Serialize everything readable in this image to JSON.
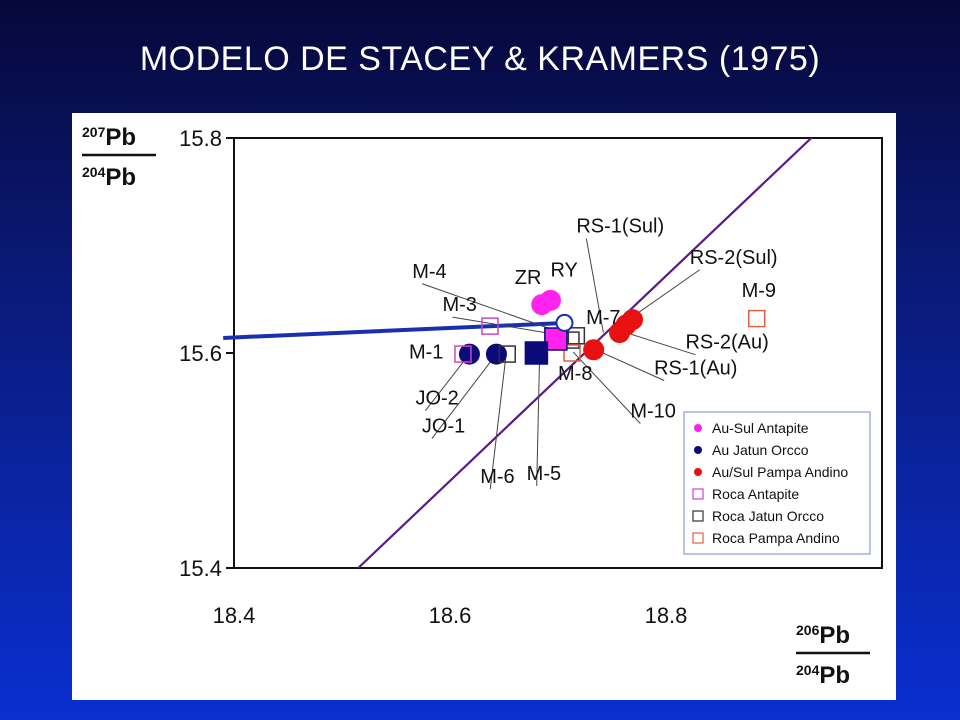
{
  "slide": {
    "title": "MODELO DE STACEY & KRAMERS (1975)"
  },
  "chart_data": {
    "type": "scatter",
    "title": "",
    "ylabel": {
      "num_sup": "207",
      "num": "Pb",
      "den_sup": "204",
      "den": "Pb"
    },
    "xlabel": {
      "num_sup": "206",
      "num": "Pb",
      "den_sup": "204",
      "den": "Pb"
    },
    "xlim": [
      18.4,
      19.0
    ],
    "ylim": [
      15.4,
      15.8
    ],
    "xticks": [
      "18.4",
      "18.6",
      "18.8"
    ],
    "yticks": [
      "15.4",
      "15.6",
      "15.8"
    ],
    "xtick_values": [
      18.4,
      18.6,
      18.8
    ],
    "ytick_values": [
      15.4,
      15.6,
      15.8
    ],
    "grid": false,
    "legend_position": "bottom-right",
    "colors": {
      "magenta": "#ff22ee",
      "navy": "#0a0a78",
      "red": "#e81010",
      "purple_line": "#5a1a8a",
      "blue_line": "#1a2fb0"
    },
    "reference_lines": [
      {
        "name": "purple-diagonal",
        "color": "#5a1a8a",
        "points": [
          [
            18.515,
            15.4
          ],
          [
            18.945,
            15.81
          ]
        ]
      },
      {
        "name": "blue-growth-curve",
        "color": "#1a2fb0",
        "points": [
          [
            18.39,
            15.614
          ],
          [
            18.708,
            15.628
          ]
        ]
      }
    ],
    "series": [
      {
        "name": "Au-Sul Antapite",
        "marker": "circle",
        "fill": "#ff22ee",
        "points": [
          [
            18.685,
            15.645
          ],
          [
            18.693,
            15.649
          ]
        ]
      },
      {
        "name": "Au Jatun Orcco",
        "marker": "circle",
        "fill": "#0a0a78",
        "points": [
          [
            18.618,
            15.599
          ],
          [
            18.643,
            15.599
          ]
        ]
      },
      {
        "name": "Au/Sul Pampa Andino",
        "marker": "circle",
        "fill": "#e81010",
        "points": [
          [
            18.733,
            15.603
          ],
          [
            18.757,
            15.619
          ],
          [
            18.763,
            15.626
          ],
          [
            18.769,
            15.631
          ]
        ]
      },
      {
        "name": "Roca Antapite",
        "marker": "square-open",
        "stroke": "#cc44cc",
        "points": [
          [
            18.612,
            15.599
          ],
          [
            18.637,
            15.625
          ]
        ]
      },
      {
        "name": "Roca Jatun Orcco",
        "marker": "square-open",
        "stroke": "#333333",
        "points": [
          [
            18.653,
            15.599
          ],
          [
            18.712,
            15.612
          ],
          [
            18.717,
            15.616
          ]
        ]
      },
      {
        "name": "Roca Pampa Andino",
        "marker": "square-open",
        "stroke": "#e06040",
        "points": [
          [
            18.884,
            15.632
          ],
          [
            18.713,
            15.6
          ]
        ]
      }
    ],
    "highlights": [
      {
        "name": "filled-magenta-square",
        "marker": "square-filled",
        "fill": "#ff22ee",
        "stroke": "#0a0a78",
        "point": [
          18.698,
          15.613
        ]
      },
      {
        "name": "filled-navy-square",
        "marker": "square-filled",
        "fill": "#0a0a78",
        "stroke": "#0a0a78",
        "point": [
          18.68,
          15.6
        ]
      },
      {
        "name": "open-blue-circle",
        "marker": "circle-open",
        "stroke": "#1a2fb0",
        "point": [
          18.706,
          15.628
        ]
      }
    ],
    "annotations": [
      {
        "text": "RS-1(Sul)",
        "label_at": [
          18.717,
          15.712
        ],
        "to": [
          18.742,
          15.619
        ]
      },
      {
        "text": "RS-2(Sul)",
        "label_at": [
          18.822,
          15.683
        ],
        "to": [
          18.768,
          15.633
        ]
      },
      {
        "text": "M-9",
        "label_at": [
          18.87,
          15.652
        ]
      },
      {
        "text": "RY",
        "label_at": [
          18.693,
          15.671
        ]
      },
      {
        "text": "ZR",
        "label_at": [
          18.66,
          15.664
        ]
      },
      {
        "text": "M-4",
        "label_at": [
          18.565,
          15.67
        ],
        "to": [
          18.7,
          15.62
        ]
      },
      {
        "text": "M-3",
        "label_at": [
          18.593,
          15.639
        ],
        "to": [
          18.7,
          15.617
        ]
      },
      {
        "text": "M-7",
        "label_at": [
          18.726,
          15.627
        ]
      },
      {
        "text": "M-1",
        "label_at": [
          18.562,
          15.595
        ]
      },
      {
        "text": "RS-2(Au)",
        "label_at": [
          18.818,
          15.604
        ],
        "to": [
          18.766,
          15.618
        ]
      },
      {
        "text": "RS-1(Au)",
        "label_at": [
          18.789,
          15.58
        ],
        "to": [
          18.735,
          15.603
        ]
      },
      {
        "text": "M-8",
        "label_at": [
          18.7,
          15.575
        ]
      },
      {
        "text": "M-10",
        "label_at": [
          18.767,
          15.54
        ],
        "to": [
          18.714,
          15.601
        ]
      },
      {
        "text": "JO-2",
        "label_at": [
          18.568,
          15.552
        ],
        "to": [
          18.618,
          15.599
        ]
      },
      {
        "text": "JO-1",
        "label_at": [
          18.574,
          15.526
        ],
        "to": [
          18.643,
          15.599
        ]
      },
      {
        "text": "M-6",
        "label_at": [
          18.628,
          15.479
        ],
        "to": [
          18.652,
          15.599
        ]
      },
      {
        "text": "M-5",
        "label_at": [
          18.671,
          15.482
        ],
        "to": [
          18.683,
          15.598
        ]
      }
    ]
  }
}
